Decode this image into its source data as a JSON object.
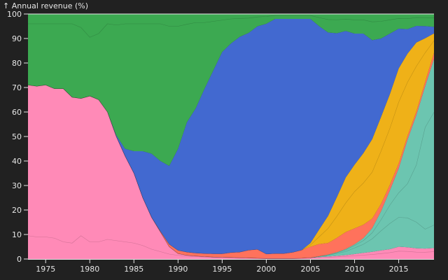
{
  "chart_data": {
    "type": "area",
    "stacked": true,
    "normalized": true,
    "title": "",
    "ylabel": "↑ Annual revenue (%)",
    "xlabel": "",
    "xlim": [
      1973,
      2019
    ],
    "ylim": [
      0,
      100
    ],
    "x_ticks": [
      1975,
      1980,
      1985,
      1990,
      1995,
      2000,
      2005,
      2010,
      2015
    ],
    "y_ticks": [
      0,
      10,
      20,
      30,
      40,
      50,
      60,
      70,
      80,
      90,
      100
    ],
    "x": [
      1973,
      1974,
      1975,
      1976,
      1977,
      1978,
      1979,
      1980,
      1981,
      1982,
      1983,
      1984,
      1985,
      1986,
      1987,
      1988,
      1989,
      1990,
      1991,
      1992,
      1993,
      1994,
      1995,
      1996,
      1997,
      1998,
      1999,
      2000,
      2001,
      2002,
      2003,
      2004,
      2005,
      2006,
      2007,
      2008,
      2009,
      2010,
      2011,
      2012,
      2013,
      2014,
      2015,
      2016,
      2017,
      2018,
      2019
    ],
    "series": [
      {
        "color": "#ff8ab7",
        "values": [
          71,
          70.5,
          71,
          69.5,
          69.5,
          66,
          65.5,
          66.5,
          65,
          60,
          50,
          42,
          35,
          25,
          17,
          11,
          5,
          2.2,
          1.5,
          1.2,
          1,
          0.8,
          0.7,
          0.6,
          0.5,
          0.4,
          0.3,
          0.2,
          0.2,
          0.2,
          0.2,
          0.3,
          0.5,
          0.8,
          1,
          1.3,
          1.6,
          2,
          2.5,
          3,
          3.5,
          4,
          5,
          4.8,
          4.5,
          4.3,
          4.5
        ],
        "sub_boundaries": [
          [
            9.5,
            9,
            9,
            8.5,
            7,
            6.5,
            9.5,
            7,
            7,
            8,
            7.5,
            7,
            6.5,
            5.5,
            4,
            3,
            2,
            1.5,
            1.2,
            1,
            0.8,
            0.6,
            0.5,
            0.4,
            0.3,
            0.3,
            0.2,
            0.1,
            0.1,
            0.1,
            0.1,
            0.2,
            0.3,
            0.5,
            0.7,
            0.9,
            1.1,
            1.3,
            1.6,
            1.9,
            2.2,
            2.6,
            3.2,
            3.1,
            2.9,
            2.8,
            3
          ]
        ]
      },
      {
        "color": "#6cc5b0",
        "values": [
          0,
          0,
          0,
          0,
          0,
          0,
          0,
          0,
          0,
          0,
          0,
          0,
          0,
          0,
          0,
          0,
          0,
          0,
          0,
          0,
          0,
          0,
          0,
          0,
          0,
          0,
          0,
          0,
          0,
          0,
          0,
          0,
          0,
          0.3,
          0.8,
          1.5,
          2.5,
          4,
          6,
          10,
          16,
          24,
          32,
          44,
          56,
          67,
          78
        ],
        "sub_boundaries": [
          [
            0,
            0,
            0,
            0,
            0,
            0,
            0,
            0,
            0,
            0,
            0,
            0,
            0,
            0,
            0,
            0,
            0,
            0,
            0,
            0,
            0,
            0,
            0,
            0,
            0,
            0,
            0,
            0,
            0,
            0,
            0,
            0,
            0,
            0.2,
            0.5,
            1,
            1.5,
            2.5,
            3.5,
            5.5,
            8,
            10.5,
            12,
            12,
            11,
            8,
            9.5
          ],
          [
            0,
            0,
            0,
            0,
            0,
            0,
            0,
            0,
            0,
            0,
            0,
            0,
            0,
            0,
            0,
            0,
            0,
            0,
            0,
            0,
            0,
            0,
            0,
            0,
            0,
            0,
            0,
            0,
            0,
            0,
            0,
            0,
            0,
            0.3,
            0.7,
            1.3,
            2.2,
            3.5,
            5,
            8,
            12.5,
            18,
            22,
            26,
            35,
            50,
            56
          ]
        ]
      },
      {
        "color": "#ff725c",
        "values": [
          0,
          0,
          0,
          0,
          0,
          0,
          0,
          0,
          0,
          0,
          0,
          0,
          0,
          0,
          0,
          0.3,
          1,
          1.3,
          1.3,
          1.2,
          1.2,
          1.3,
          1.4,
          2,
          2.3,
          3.2,
          3.6,
          1.8,
          2,
          2,
          2.5,
          3.3,
          4.5,
          5,
          4.8,
          6,
          7,
          6.5,
          5.5,
          4,
          3,
          2.3,
          2,
          1.5,
          1.5,
          1.8,
          2.5
        ]
      },
      {
        "color": "#efb118",
        "values": [
          0,
          0,
          0,
          0,
          0,
          0,
          0,
          0,
          0,
          0,
          0,
          0,
          0,
          0,
          0,
          0,
          0,
          0,
          0,
          0,
          0,
          0,
          0,
          0,
          0,
          0,
          0,
          0,
          0,
          0,
          0,
          0,
          1.5,
          6,
          11.2,
          17,
          22.5,
          26,
          29.2,
          33.4,
          35.5,
          37,
          38.8,
          33.7,
          29,
          18,
          8
        ],
        "sub_boundaries": [
          [
            0,
            0,
            0,
            0,
            0,
            0,
            0,
            0,
            0,
            0,
            0,
            0,
            0,
            0,
            0,
            0,
            0,
            0,
            0,
            0,
            0,
            0,
            0,
            0,
            0,
            0,
            0,
            0,
            0,
            0,
            0,
            0,
            0.7,
            3,
            6,
            9,
            12,
            15,
            17,
            19.5,
            21.5,
            23,
            25,
            22,
            19,
            12,
            5
          ]
        ]
      },
      {
        "color": "#4269d0",
        "values": [
          0,
          0,
          0,
          0,
          0,
          0,
          0,
          0,
          0,
          0,
          0.5,
          3,
          9,
          19,
          26,
          28.7,
          32,
          41.5,
          53,
          59.1,
          67.3,
          74.9,
          82.4,
          85.4,
          87.9,
          88.7,
          91.1,
          94,
          95.8,
          95.8,
          95.3,
          94.4,
          91.5,
          82.9,
          75.6,
          68.2,
          60.4,
          53.5,
          48.8,
          41.6,
          32,
          24.7,
          16.2,
          10,
          7,
          5,
          2.7
        ]
      },
      {
        "color": "#3ca951",
        "values": [
          29,
          29.5,
          29,
          30.5,
          30.5,
          34,
          34.5,
          33.5,
          35,
          40,
          49.5,
          55,
          56,
          56,
          57,
          60,
          62,
          55,
          44.2,
          38.5,
          30.5,
          23,
          15.5,
          12,
          9.3,
          7.7,
          5,
          4,
          2,
          2,
          2,
          2,
          2,
          5,
          7.6,
          8,
          7,
          8,
          8,
          11,
          10,
          8,
          6,
          6.2,
          5,
          5,
          5.3
        ],
        "sub_boundaries": [
          [
            25,
            25.5,
            25,
            26.5,
            26.5,
            30,
            29,
            24,
            27,
            36,
            45,
            51,
            52,
            52,
            53,
            56,
            57,
            50,
            40,
            35,
            27,
            20,
            13,
            10,
            7.5,
            6,
            3.8,
            3,
            1.4,
            1.4,
            1.4,
            1.4,
            1.4,
            3.5,
            5.3,
            5.6,
            4.9,
            5.6,
            5.6,
            7.7,
            7,
            5.6,
            4.2,
            4.3,
            3.5,
            3.5,
            3.7
          ]
        ]
      }
    ]
  }
}
